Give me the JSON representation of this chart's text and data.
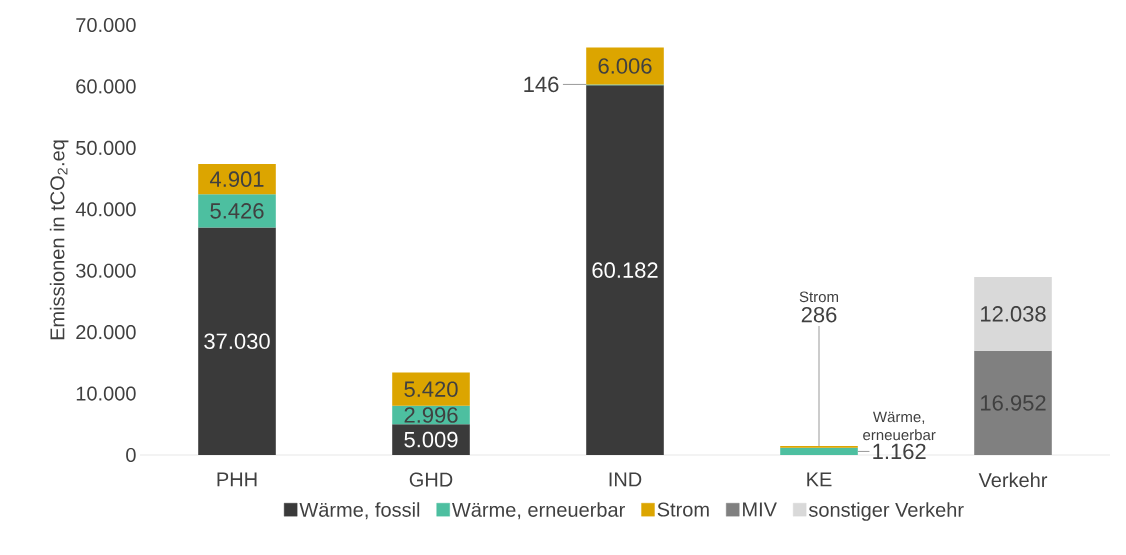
{
  "chart_data": {
    "type": "bar",
    "stacked": true,
    "ylabel": "Emissionen in tCO$_{2}$.eq",
    "categories": [
      "PHH",
      "GHD",
      "IND",
      "KE",
      "Verkehr"
    ],
    "series": [
      {
        "name": "Wärme, fossil",
        "color": "#3a3a3a",
        "values": [
          37030,
          5009,
          60182,
          null,
          null
        ],
        "value_labels": [
          "37.030",
          "5.009",
          "60.182",
          null,
          null
        ]
      },
      {
        "name": "Wärme, erneuerbar",
        "color": "#4dbfa0",
        "values": [
          5426,
          2996,
          146,
          1162,
          null
        ],
        "value_labels": [
          "5.426",
          "2.996",
          "146",
          "1.162",
          null
        ]
      },
      {
        "name": "Strom",
        "color": "#dca500",
        "values": [
          4901,
          5420,
          6006,
          286,
          null
        ],
        "value_labels": [
          "4.901",
          "5.420",
          "6.006",
          "286",
          null
        ]
      },
      {
        "name": "MIV",
        "color": "#808080",
        "values": [
          null,
          null,
          null,
          null,
          16952
        ],
        "value_labels": [
          null,
          null,
          null,
          null,
          "16.952"
        ]
      },
      {
        "name": "sonstiger Verkehr",
        "color": "#d9d9d9",
        "values": [
          null,
          null,
          null,
          null,
          12038
        ],
        "value_labels": [
          null,
          null,
          null,
          null,
          "12.038"
        ]
      }
    ],
    "annotations": [
      "Strom",
      "Wärme, erneuerbar"
    ],
    "ylim": [
      0,
      70000
    ],
    "yticks": [
      0,
      {
        "value": 10000,
        "label": "10.000"
      },
      {
        "value": 20000,
        "label": "20.000"
      },
      {
        "value": 30000,
        "label": "30.000"
      },
      {
        "value": 40000,
        "label": "40.000"
      },
      {
        "value": 50000,
        "label": "50.000"
      },
      {
        "value": 60000,
        "label": "60.000"
      },
      {
        "value": 70000,
        "label": "70.000"
      }
    ],
    "legend": "bottom"
  }
}
